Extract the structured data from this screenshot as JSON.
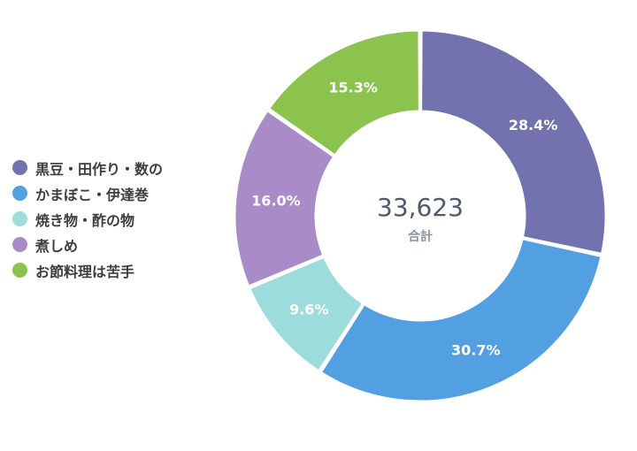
{
  "chart_data": {
    "type": "pie",
    "donut": true,
    "categories": [
      "黒豆・田作り・数の",
      "かまぼこ・伊達巻",
      "焼き物・酢の物",
      "煮しめ",
      "お節料理は苦手"
    ],
    "values": [
      28.4,
      30.7,
      9.6,
      16.0,
      15.3
    ],
    "value_labels": [
      "28.4%",
      "30.7%",
      "9.6%",
      "16.0%",
      "15.3%"
    ],
    "colors": [
      "#7272ae",
      "#529fe2",
      "#9cdcdc",
      "#a98bc8",
      "#8bc34e"
    ],
    "total": "33,623",
    "total_caption": "合計",
    "legend": "left"
  }
}
